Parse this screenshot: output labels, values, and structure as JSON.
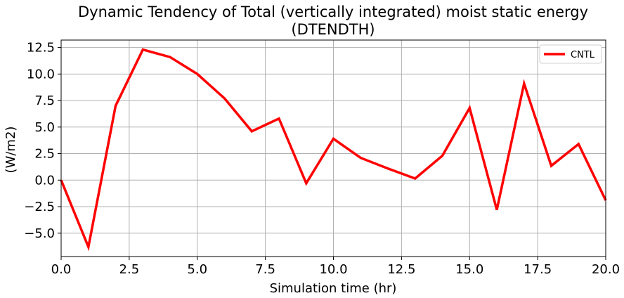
{
  "chart_data": {
    "type": "line",
    "title": "Dynamic Tendency of Total (vertically integrated) moist static energy\n(DTENDTH)",
    "xlabel": "Simulation time (hr)",
    "ylabel": "(W/m2)",
    "xlim": [
      0,
      20
    ],
    "ylim": [
      -7.2,
      13.2
    ],
    "xticks": [
      0,
      2.5,
      5,
      7.5,
      10,
      12.5,
      15,
      17.5,
      20
    ],
    "xtick_labels": [
      "0.0",
      "2.5",
      "5.0",
      "7.5",
      "10.0",
      "12.5",
      "15.0",
      "17.5",
      "20.0"
    ],
    "yticks": [
      -5,
      -2.5,
      0,
      2.5,
      5,
      7.5,
      10,
      12.5
    ],
    "ytick_labels": [
      "−5.0",
      "−2.5",
      "0.0",
      "2.5",
      "5.0",
      "7.5",
      "10.0",
      "12.5"
    ],
    "grid": true,
    "legend_position": "top-right",
    "series": [
      {
        "name": "CNTL",
        "color": "#ff0000",
        "x": [
          0,
          1,
          2,
          3,
          4,
          5,
          6,
          7,
          8,
          9,
          10,
          11,
          12,
          13,
          14,
          15,
          16,
          17,
          18,
          19,
          20
        ],
        "y": [
          0.0,
          -6.3,
          7.0,
          12.3,
          11.6,
          10.0,
          7.7,
          4.6,
          5.8,
          -0.3,
          3.9,
          2.1,
          1.1,
          0.15,
          2.3,
          6.8,
          -2.8,
          9.1,
          1.35,
          3.4,
          -1.9
        ]
      }
    ]
  }
}
